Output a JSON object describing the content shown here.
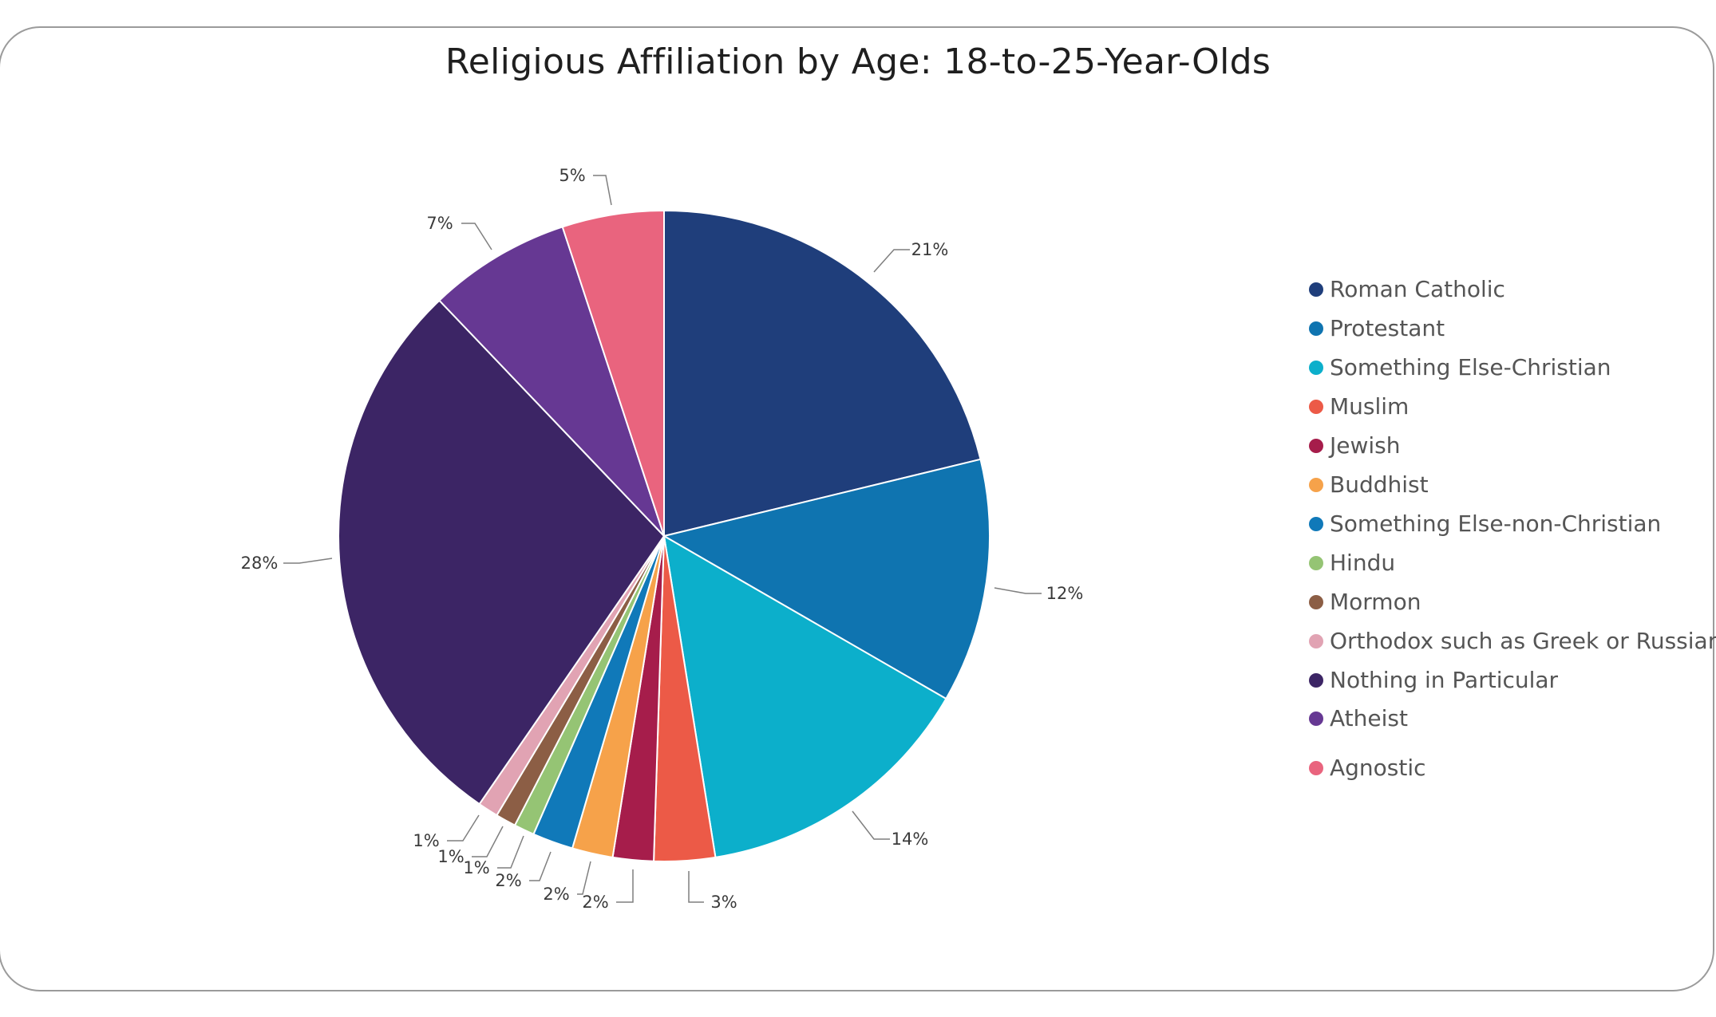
{
  "chart_data": {
    "type": "pie",
    "title": "Religious Affiliation by Age: 18-to-25-Year-Olds",
    "slices": [
      {
        "name": "Roman Catholic",
        "value": 21,
        "label": "21%",
        "color": "#1f3e7b"
      },
      {
        "name": "Protestant",
        "value": 12,
        "label": "12%",
        "color": "#0f74b0"
      },
      {
        "name": "Something Else-Christian",
        "value": 14,
        "label": "14%",
        "color": "#0cafcb"
      },
      {
        "name": "Muslim",
        "value": 3,
        "label": "3%",
        "color": "#ec5a47"
      },
      {
        "name": "Jewish",
        "value": 2,
        "label": "2%",
        "color": "#a61d4b"
      },
      {
        "name": "Buddhist",
        "value": 2,
        "label": "2%",
        "color": "#f6a24a"
      },
      {
        "name": "Something Else-non-Christian",
        "value": 2,
        "label": "2%",
        "color": "#1079b9"
      },
      {
        "name": "Hindu",
        "value": 1,
        "label": "1%",
        "color": "#95c474"
      },
      {
        "name": "Mormon",
        "value": 1,
        "label": "1%",
        "color": "#8c5e45"
      },
      {
        "name": "Orthodox such as Greek or Russian",
        "value": 1,
        "label": "1%",
        "color": "#e1a3b3"
      },
      {
        "name": "Nothing in Particular",
        "value": 28,
        "label": "28%",
        "color": "#3c2565"
      },
      {
        "name": "Atheist",
        "value": 7,
        "label": "7%",
        "color": "#663893"
      },
      {
        "name": "Agnostic",
        "value": 5,
        "label": "5%",
        "color": "#e9647e"
      }
    ],
    "legend_position": "right"
  }
}
